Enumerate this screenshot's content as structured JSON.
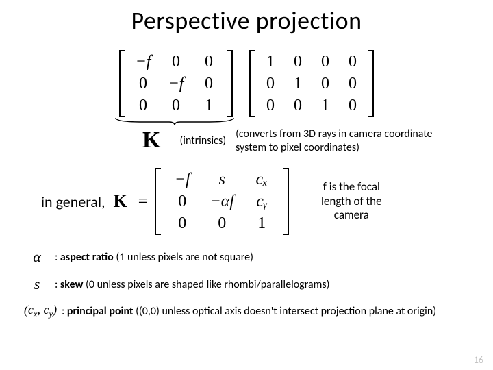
{
  "title": "Perspective projection",
  "matrix_left": {
    "rows": 3,
    "cols": 3,
    "cells": [
      "−f",
      "0",
      "0",
      "0",
      "−f",
      "0",
      "0",
      "0",
      "1"
    ],
    "italic_flags": [
      1,
      0,
      0,
      0,
      1,
      0,
      0,
      0,
      0
    ]
  },
  "matrix_right": {
    "rows": 3,
    "cols": 4,
    "cells": [
      "1",
      "0",
      "0",
      "0",
      "0",
      "1",
      "0",
      "0",
      "0",
      "0",
      "1",
      "0"
    ]
  },
  "k_symbol": "K",
  "intrinsics_label": "(intrinsics)",
  "converts_text": "(converts from 3D rays in camera coordinate system to pixel coordinates)",
  "in_general_label": "in general,",
  "k_eq_symbol": "K",
  "equals": "=",
  "matrix_general": {
    "rows": 3,
    "cols": 3,
    "cells": [
      "−f",
      "s",
      "cₓ",
      "0",
      "−αf",
      "cᵧ",
      "0",
      "0",
      "1"
    ],
    "italic_flags": [
      1,
      1,
      1,
      0,
      1,
      1,
      0,
      0,
      0
    ]
  },
  "focal_note": "f is the focal length of the camera",
  "defs": [
    {
      "sym": "α",
      "bold": "aspect ratio",
      "rest": " (1 unless pixels are not square)"
    },
    {
      "sym": "s",
      "bold": "skew",
      "rest": " (0 unless pixels are shaped like rhombi/parallelograms)"
    },
    {
      "sym": "(cx, cy)",
      "bold": "principal point",
      "rest": " ((0,0) unless optical axis doesn't intersect projection plane at origin)"
    }
  ],
  "slide_number": "16",
  "colors": {
    "bg": "#ffffff",
    "text": "#000000",
    "slidenum": "#bfbfbf"
  },
  "fonts": {
    "title_size": 36,
    "body_size": 16,
    "matrix_size": 24
  }
}
